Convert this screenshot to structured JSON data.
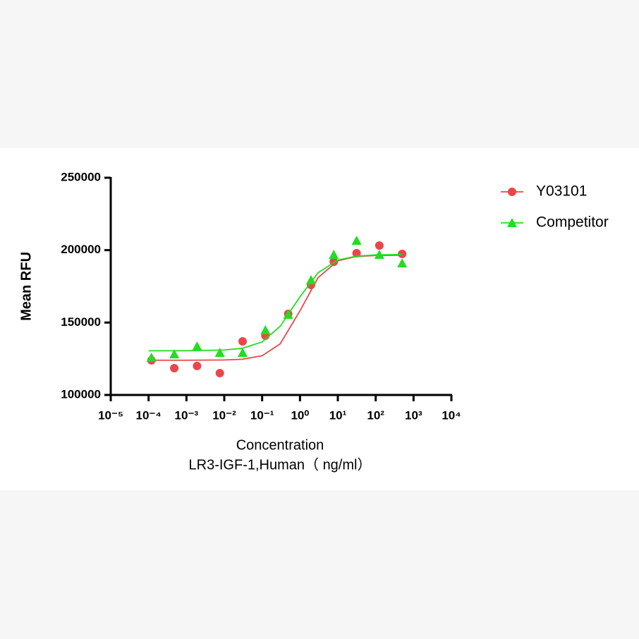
{
  "chart_data": {
    "type": "scatter",
    "ylabel": "Mean RFU",
    "xlabel": [
      "Concentration",
      "LR3-IGF-1,Human（ ng/ml）"
    ],
    "xscale": "log",
    "xlim": [
      1e-05,
      10000
    ],
    "xticks": [
      {
        "value": 1e-05,
        "label": "10⁻⁵"
      },
      {
        "value": 0.0001,
        "label": "10⁻⁴"
      },
      {
        "value": 0.001,
        "label": "10⁻³"
      },
      {
        "value": 0.01,
        "label": "10⁻²"
      },
      {
        "value": 0.1,
        "label": "10⁻¹"
      },
      {
        "value": 1,
        "label": "10⁰"
      },
      {
        "value": 10,
        "label": "10¹"
      },
      {
        "value": 100,
        "label": "10²"
      },
      {
        "value": 1000,
        "label": "10³"
      },
      {
        "value": 10000,
        "label": "10⁴"
      }
    ],
    "ylim": [
      100000,
      250000
    ],
    "yticks": [
      100000,
      150000,
      200000,
      250000
    ],
    "legend": "right",
    "series": [
      {
        "name": "Y03101",
        "color": "#e8474a",
        "marker": "circle",
        "x": [
          0.000119,
          0.000477,
          0.00191,
          0.00763,
          0.0305,
          0.122,
          0.488,
          1.953,
          7.8125,
          31.25,
          125,
          500
        ],
        "values": [
          123900,
          118500,
          120000,
          115100,
          137000,
          140900,
          156000,
          176000,
          192000,
          197900,
          203200,
          197400
        ],
        "fit": {
          "x": [
            0.0001,
            0.001,
            0.01,
            0.03,
            0.1,
            0.3,
            1,
            3,
            10,
            30,
            100,
            500
          ],
          "values": [
            124000,
            124000,
            124160,
            124670,
            127070,
            135300,
            158100,
            181000,
            192600,
            195550,
            196300,
            196500
          ]
        }
      },
      {
        "name": "Competitor",
        "color": "#22dd22",
        "marker": "triangle",
        "x": [
          0.000119,
          0.000477,
          0.00191,
          0.00763,
          0.0305,
          0.122,
          0.488,
          1.953,
          7.8125,
          31.25,
          125,
          500
        ],
        "values": [
          125800,
          128200,
          133600,
          129200,
          129200,
          144800,
          155500,
          179400,
          196900,
          206600,
          196900,
          191000
        ],
        "fit": {
          "x": [
            0.0001,
            0.001,
            0.01,
            0.03,
            0.1,
            0.3,
            1,
            3,
            10,
            30,
            100,
            500
          ],
          "values": [
            130500,
            130540,
            131030,
            132230,
            136620,
            147390,
            167800,
            184370,
            193140,
            195800,
            196700,
            197000
          ]
        }
      }
    ]
  }
}
